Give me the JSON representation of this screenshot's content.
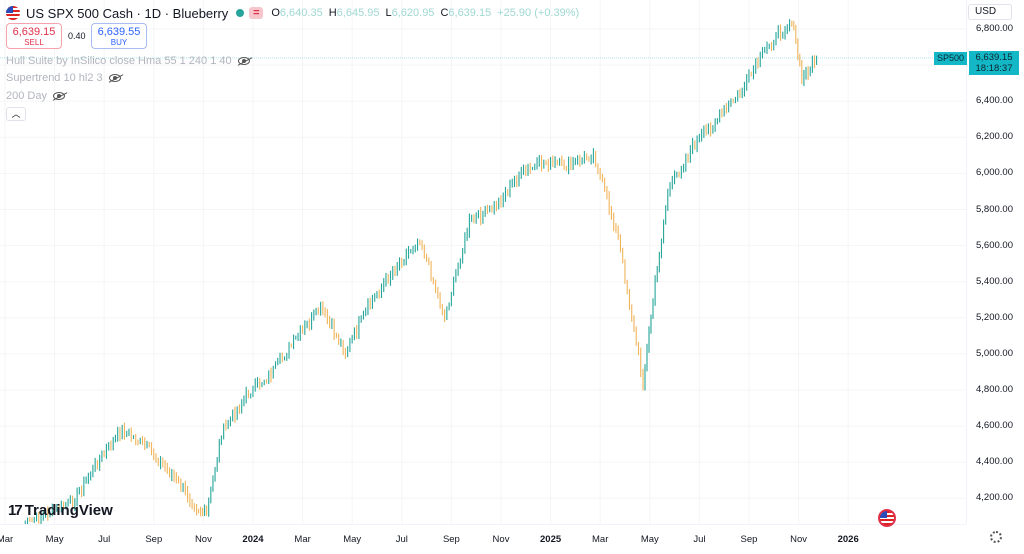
{
  "header": {
    "title": "US SPX 500 Cash · 1D · Blueberry",
    "eq_badge": "=",
    "ohlc": {
      "o_label": "O",
      "o": "6,640.35",
      "h_label": "H",
      "h": "6,645.95",
      "l_label": "L",
      "l": "6,620.95",
      "c_label": "C",
      "c": "6,639.15",
      "change": "+25.90 (+0.39%)"
    },
    "colors": {
      "up": "#26a69a",
      "down": "#f0b45a",
      "accent": "#13b7c6"
    }
  },
  "trade": {
    "sell_price": "6,639.15",
    "sell_label": "SELL",
    "spread": "0.40",
    "buy_price": "6,639.55",
    "buy_label": "BUY"
  },
  "indicators": [
    {
      "label": "Hull Suite by InSilico close Hma 55 1 240 1 40",
      "icon": "eye-slash-icon"
    },
    {
      "label": "Supertrend 10 hl2 3",
      "icon": "eye-slash-icon"
    },
    {
      "label": "200 Day",
      "icon": "eye-slash-icon"
    }
  ],
  "collapse_icon": "chevron-up-icon",
  "price_scale": {
    "currency": "USD",
    "ticks": [
      "6,800.00",
      "6,600.00",
      "6,400.00",
      "6,200.00",
      "6,000.00",
      "5,800.00",
      "5,600.00",
      "5,400.00",
      "5,200.00",
      "5,000.00",
      "4,800.00",
      "4,600.00",
      "4,400.00",
      "4,200.00"
    ],
    "symbol_tag": "SP500",
    "last_price": "6,639.15",
    "countdown": "18:18:37"
  },
  "time_axis": {
    "ticks": [
      {
        "label": "Mar",
        "year": false
      },
      {
        "label": "May",
        "year": false
      },
      {
        "label": "Jul",
        "year": false
      },
      {
        "label": "Sep",
        "year": false
      },
      {
        "label": "Nov",
        "year": false
      },
      {
        "label": "2024",
        "year": true
      },
      {
        "label": "Mar",
        "year": false
      },
      {
        "label": "May",
        "year": false
      },
      {
        "label": "Jul",
        "year": false
      },
      {
        "label": "Sep",
        "year": false
      },
      {
        "label": "Nov",
        "year": false
      },
      {
        "label": "2025",
        "year": true
      },
      {
        "label": "Mar",
        "year": false
      },
      {
        "label": "May",
        "year": false
      },
      {
        "label": "Jul",
        "year": false
      },
      {
        "label": "Sep",
        "year": false
      },
      {
        "label": "Nov",
        "year": false
      },
      {
        "label": "2026",
        "year": true
      }
    ]
  },
  "branding": {
    "logo_mark": "17",
    "logo_text": "TradingView"
  },
  "chart_data": {
    "type": "line",
    "series": [
      {
        "name": "SP500",
        "x": [
          "2023-03",
          "2023-04",
          "2023-05",
          "2023-06",
          "2023-07",
          "2023-08",
          "2023-09",
          "2023-10",
          "2023-10",
          "2023-11",
          "2023-12",
          "2024-01",
          "2024-02",
          "2024-03",
          "2024-04",
          "2024-05",
          "2024-06",
          "2024-07",
          "2024-08",
          "2024-09",
          "2024-10",
          "2024-11",
          "2024-12",
          "2025-01",
          "2025-02",
          "2025-03",
          "2025-04",
          "2025-04",
          "2025-05",
          "2025-06",
          "2025-07",
          "2025-08",
          "2025-09",
          "2025-10",
          "2025-10",
          "2025-11"
        ],
        "y": [
          4050,
          4120,
          4180,
          4400,
          4580,
          4480,
          4330,
          4150,
          4110,
          4560,
          4770,
          4890,
          5080,
          5250,
          5010,
          5280,
          5480,
          5640,
          5200,
          5730,
          5810,
          5990,
          6060,
          6040,
          6110,
          5640,
          4840,
          5300,
          5900,
          6150,
          6300,
          6460,
          6700,
          6850,
          6520,
          6640
        ]
      }
    ],
    "ylim": [
      4100,
      6950
    ],
    "grid": true
  }
}
